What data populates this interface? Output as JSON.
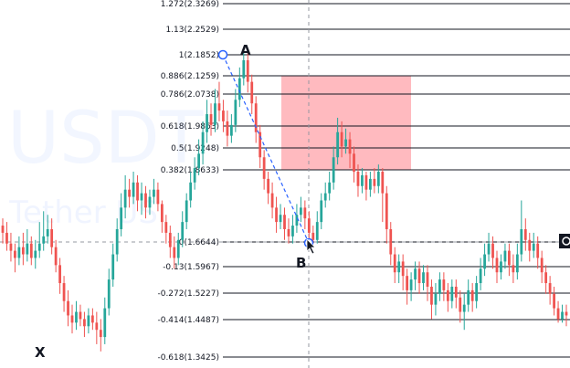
{
  "watermark": {
    "symbol": "USDT",
    "name": "Tether US"
  },
  "points": {
    "x": "X",
    "a": "A",
    "b": "B"
  },
  "fib_levels": [
    {
      "text": "1.272(2.3269)"
    },
    {
      "text": "1.13(2.2529)"
    },
    {
      "text": "1(2.1852)"
    },
    {
      "text": "0.886(2.1259)"
    },
    {
      "text": "0.786(2.0738)"
    },
    {
      "text": "0.618(1.9863)"
    },
    {
      "text": "0.5(1.9248)"
    },
    {
      "text": "0.382(1.8633)"
    },
    {
      "text": "0(1.6644)"
    },
    {
      "text": "-0.13(1.5967)"
    },
    {
      "text": "-0.272(1.5227)"
    },
    {
      "text": "-0.414(1.4487)"
    },
    {
      "text": "-0.618(1.3425)"
    }
  ],
  "colors": {
    "up_candle": "#26a69a",
    "down_candle": "#ef5350",
    "fib_line": "#131722",
    "zone_fill": "#ffb3b8",
    "handle_stroke": "#2962ff",
    "crosshair": "#9598a1"
  },
  "chart_data": {
    "type": "candlestick",
    "candles": [
      [
        1.71,
        1.69,
        1.73,
        1.66
      ],
      [
        1.69,
        1.66,
        1.72,
        1.64
      ],
      [
        1.66,
        1.64,
        1.69,
        1.61
      ],
      [
        1.64,
        1.62,
        1.66,
        1.58
      ],
      [
        1.62,
        1.65,
        1.68,
        1.6
      ],
      [
        1.65,
        1.63,
        1.69,
        1.6
      ],
      [
        1.63,
        1.66,
        1.7,
        1.61
      ],
      [
        1.66,
        1.62,
        1.68,
        1.6
      ],
      [
        1.62,
        1.64,
        1.67,
        1.59
      ],
      [
        1.64,
        1.66,
        1.72,
        1.62
      ],
      [
        1.66,
        1.68,
        1.75,
        1.64
      ],
      [
        1.68,
        1.7,
        1.74,
        1.66
      ],
      [
        1.7,
        1.65,
        1.73,
        1.63
      ],
      [
        1.65,
        1.6,
        1.67,
        1.58
      ],
      [
        1.6,
        1.55,
        1.62,
        1.52
      ],
      [
        1.55,
        1.5,
        1.57,
        1.47
      ],
      [
        1.5,
        1.46,
        1.53,
        1.43
      ],
      [
        1.46,
        1.44,
        1.49,
        1.41
      ],
      [
        1.44,
        1.47,
        1.5,
        1.42
      ],
      [
        1.47,
        1.45,
        1.49,
        1.43
      ],
      [
        1.45,
        1.43,
        1.47,
        1.4
      ],
      [
        1.43,
        1.46,
        1.48,
        1.41
      ],
      [
        1.46,
        1.44,
        1.48,
        1.42
      ],
      [
        1.44,
        1.42,
        1.47,
        1.38
      ],
      [
        1.42,
        1.4,
        1.45,
        1.36
      ],
      [
        1.4,
        1.48,
        1.51,
        1.38
      ],
      [
        1.48,
        1.56,
        1.59,
        1.46
      ],
      [
        1.56,
        1.63,
        1.66,
        1.54
      ],
      [
        1.63,
        1.7,
        1.73,
        1.61
      ],
      [
        1.7,
        1.76,
        1.8,
        1.68
      ],
      [
        1.76,
        1.81,
        1.85,
        1.73
      ],
      [
        1.81,
        1.79,
        1.84,
        1.76
      ],
      [
        1.79,
        1.83,
        1.86,
        1.77
      ],
      [
        1.83,
        1.78,
        1.85,
        1.75
      ],
      [
        1.78,
        1.8,
        1.83,
        1.74
      ],
      [
        1.8,
        1.76,
        1.82,
        1.73
      ],
      [
        1.76,
        1.79,
        1.81,
        1.74
      ],
      [
        1.79,
        1.81,
        1.84,
        1.77
      ],
      [
        1.81,
        1.77,
        1.83,
        1.75
      ],
      [
        1.77,
        1.72,
        1.78,
        1.69
      ],
      [
        1.72,
        1.69,
        1.74,
        1.66
      ],
      [
        1.69,
        1.65,
        1.71,
        1.62
      ],
      [
        1.65,
        1.62,
        1.68,
        1.59
      ],
      [
        1.62,
        1.67,
        1.69,
        1.6
      ],
      [
        1.67,
        1.72,
        1.75,
        1.65
      ],
      [
        1.72,
        1.78,
        1.8,
        1.7
      ],
      [
        1.78,
        1.83,
        1.86,
        1.76
      ],
      [
        1.83,
        1.87,
        1.9,
        1.81
      ],
      [
        1.87,
        1.91,
        1.95,
        1.85
      ],
      [
        1.91,
        1.97,
        2.0,
        1.88
      ],
      [
        1.97,
        2.02,
        2.06,
        1.94
      ],
      [
        2.02,
        1.99,
        2.05,
        1.96
      ],
      [
        1.99,
        2.05,
        2.09,
        1.97
      ],
      [
        2.05,
        2.03,
        2.11,
        2.0
      ],
      [
        2.03,
        2.0,
        2.06,
        1.97
      ],
      [
        2.0,
        1.96,
        2.03,
        1.93
      ],
      [
        1.96,
        1.99,
        2.02,
        1.94
      ],
      [
        1.99,
        2.06,
        2.09,
        1.97
      ],
      [
        2.06,
        2.12,
        2.15,
        2.04
      ],
      [
        2.12,
        2.17,
        2.2,
        2.1
      ],
      [
        2.17,
        2.11,
        2.19,
        2.08
      ],
      [
        2.11,
        2.05,
        2.13,
        2.02
      ],
      [
        2.05,
        1.97,
        2.07,
        1.94
      ],
      [
        1.97,
        1.9,
        1.99,
        1.87
      ],
      [
        1.9,
        1.84,
        1.92,
        1.81
      ],
      [
        1.84,
        1.8,
        1.86,
        1.77
      ],
      [
        1.8,
        1.76,
        1.83,
        1.73
      ],
      [
        1.76,
        1.72,
        1.79,
        1.69
      ],
      [
        1.72,
        1.74,
        1.77,
        1.7
      ],
      [
        1.74,
        1.7,
        1.76,
        1.67
      ],
      [
        1.7,
        1.68,
        1.73,
        1.66
      ],
      [
        1.68,
        1.71,
        1.74,
        1.66
      ],
      [
        1.71,
        1.74,
        1.77,
        1.69
      ],
      [
        1.74,
        1.76,
        1.79,
        1.72
      ],
      [
        1.76,
        1.73,
        1.78,
        1.7
      ],
      [
        1.73,
        1.69,
        1.75,
        1.66
      ],
      [
        1.69,
        1.67,
        1.71,
        1.66
      ],
      [
        1.67,
        1.72,
        1.75,
        1.66
      ],
      [
        1.72,
        1.78,
        1.8,
        1.7
      ],
      [
        1.78,
        1.8,
        1.83,
        1.76
      ],
      [
        1.8,
        1.83,
        1.86,
        1.78
      ],
      [
        1.83,
        1.9,
        1.93,
        1.81
      ],
      [
        1.9,
        1.97,
        2.01,
        1.88
      ],
      [
        1.97,
        1.93,
        2.0,
        1.9
      ],
      [
        1.93,
        1.95,
        1.98,
        1.91
      ],
      [
        1.95,
        1.91,
        1.97,
        1.87
      ],
      [
        1.91,
        1.86,
        1.93,
        1.83
      ],
      [
        1.86,
        1.82,
        1.88,
        1.79
      ],
      [
        1.82,
        1.85,
        1.87,
        1.8
      ],
      [
        1.85,
        1.81,
        1.86,
        1.78
      ],
      [
        1.81,
        1.84,
        1.86,
        1.79
      ],
      [
        1.84,
        1.82,
        1.87,
        1.8
      ],
      [
        1.82,
        1.86,
        1.88,
        1.8
      ],
      [
        1.86,
        1.8,
        1.87,
        1.72
      ],
      [
        1.8,
        1.7,
        1.82,
        1.66
      ],
      [
        1.7,
        1.63,
        1.72,
        1.6
      ],
      [
        1.63,
        1.58,
        1.65,
        1.55
      ],
      [
        1.58,
        1.61,
        1.63,
        1.55
      ],
      [
        1.61,
        1.57,
        1.63,
        1.53
      ],
      [
        1.57,
        1.53,
        1.59,
        1.49
      ],
      [
        1.53,
        1.56,
        1.58,
        1.5
      ],
      [
        1.56,
        1.59,
        1.61,
        1.53
      ],
      [
        1.59,
        1.55,
        1.61,
        1.52
      ],
      [
        1.55,
        1.58,
        1.6,
        1.53
      ],
      [
        1.58,
        1.54,
        1.6,
        1.5
      ],
      [
        1.54,
        1.49,
        1.56,
        1.45
      ],
      [
        1.49,
        1.52,
        1.55,
        1.46
      ],
      [
        1.52,
        1.56,
        1.58,
        1.5
      ],
      [
        1.56,
        1.53,
        1.58,
        1.5
      ],
      [
        1.53,
        1.5,
        1.55,
        1.47
      ],
      [
        1.5,
        1.54,
        1.56,
        1.48
      ],
      [
        1.54,
        1.51,
        1.56,
        1.48
      ],
      [
        1.51,
        1.47,
        1.53,
        1.44
      ],
      [
        1.47,
        1.49,
        1.52,
        1.42
      ],
      [
        1.49,
        1.53,
        1.56,
        1.47
      ],
      [
        1.53,
        1.5,
        1.55,
        1.47
      ],
      [
        1.5,
        1.55,
        1.57,
        1.48
      ],
      [
        1.55,
        1.59,
        1.62,
        1.53
      ],
      [
        1.59,
        1.63,
        1.66,
        1.57
      ],
      [
        1.63,
        1.66,
        1.69,
        1.61
      ],
      [
        1.66,
        1.62,
        1.68,
        1.59
      ],
      [
        1.62,
        1.58,
        1.64,
        1.55
      ],
      [
        1.58,
        1.61,
        1.63,
        1.56
      ],
      [
        1.61,
        1.64,
        1.66,
        1.59
      ],
      [
        1.64,
        1.6,
        1.66,
        1.57
      ],
      [
        1.6,
        1.58,
        1.63,
        1.55
      ],
      [
        1.58,
        1.63,
        1.66,
        1.56
      ],
      [
        1.63,
        1.7,
        1.78,
        1.61
      ],
      [
        1.7,
        1.67,
        1.73,
        1.64
      ],
      [
        1.67,
        1.64,
        1.69,
        1.61
      ],
      [
        1.64,
        1.66,
        1.69,
        1.62
      ],
      [
        1.66,
        1.62,
        1.68,
        1.59
      ],
      [
        1.62,
        1.58,
        1.64,
        1.55
      ],
      [
        1.58,
        1.55,
        1.6,
        1.52
      ],
      [
        1.55,
        1.52,
        1.57,
        1.49
      ],
      [
        1.52,
        1.48,
        1.54,
        1.46
      ],
      [
        1.48,
        1.45,
        1.5,
        1.44
      ],
      [
        1.45,
        1.47,
        1.49,
        1.44
      ],
      [
        1.47,
        1.46,
        1.49,
        1.43
      ]
    ]
  }
}
